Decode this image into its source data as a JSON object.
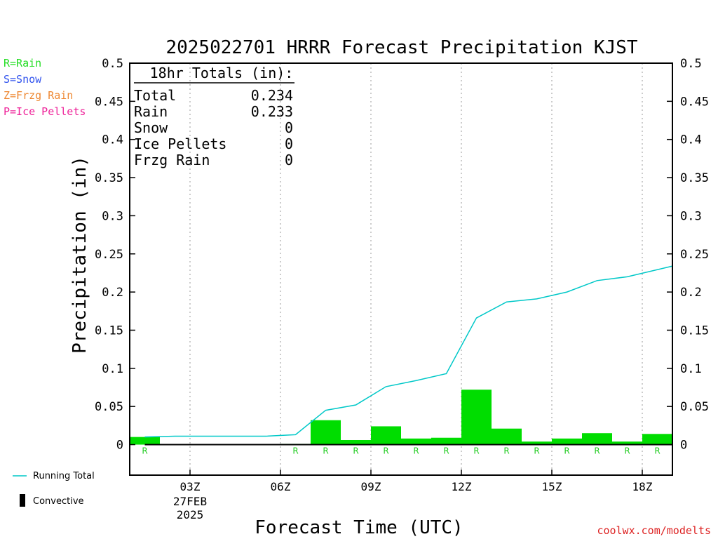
{
  "chart_data": {
    "type": "bar",
    "title": "2025022701 HRRR Forecast Precipitation KJST",
    "xlabel": "Forecast Time (UTC)",
    "ylabel": "Precipitation (in)",
    "ylim": [
      -0.04,
      0.5
    ],
    "xlim": [
      0,
      18
    ],
    "y_ticks": [
      0,
      0.05,
      0.1,
      0.15,
      0.2,
      0.25,
      0.3,
      0.35,
      0.4,
      0.45,
      0.5
    ],
    "y_tick_labels": [
      "0",
      "0.05",
      "0.1",
      "0.15",
      "0.2",
      "0.25",
      "0.3",
      "0.35",
      "0.4",
      "0.45",
      "0.5"
    ],
    "x_ticks": [
      {
        "x": 2,
        "label": "03Z",
        "sub": [
          "27FEB",
          "2025"
        ]
      },
      {
        "x": 5,
        "label": "06Z",
        "sub": []
      },
      {
        "x": 8,
        "label": "09Z",
        "sub": []
      },
      {
        "x": 11,
        "label": "12Z",
        "sub": []
      },
      {
        "x": 14,
        "label": "15Z",
        "sub": []
      },
      {
        "x": 17,
        "label": "18Z",
        "sub": []
      }
    ],
    "grid": "vertical dotted",
    "series": [
      {
        "name": "Rain",
        "color": "#00dd00",
        "x": [
          1,
          2,
          3,
          4,
          5,
          6,
          7,
          8,
          9,
          10,
          11,
          12,
          13,
          14,
          15,
          16,
          17,
          18
        ],
        "values": [
          0.01,
          0.0,
          0.0,
          0.0,
          0.0,
          0.001,
          0.032,
          0.006,
          0.024,
          0.008,
          0.009,
          0.072,
          0.021,
          0.004,
          0.008,
          0.015,
          0.004,
          0.014
        ]
      },
      {
        "name": "Running Total",
        "color": "#00c8c8",
        "type": "line",
        "x": [
          1,
          2,
          3,
          4,
          5,
          6,
          7,
          8,
          9,
          10,
          11,
          12,
          13,
          14,
          15,
          16,
          17,
          18
        ],
        "values": [
          0.01,
          0.011,
          0.011,
          0.011,
          0.011,
          0.013,
          0.045,
          0.052,
          0.076,
          0.084,
          0.093,
          0.166,
          0.187,
          0.191,
          0.2,
          0.215,
          0.22,
          0.234
        ]
      }
    ],
    "precip_type_markers": [
      {
        "x": 1,
        "label": "R"
      },
      {
        "x": 6,
        "label": "R"
      },
      {
        "x": 7,
        "label": "R"
      },
      {
        "x": 8,
        "label": "R"
      },
      {
        "x": 9,
        "label": "R"
      },
      {
        "x": 10,
        "label": "R"
      },
      {
        "x": 11,
        "label": "R"
      },
      {
        "x": 12,
        "label": "R"
      },
      {
        "x": 13,
        "label": "R"
      },
      {
        "x": 14,
        "label": "R"
      },
      {
        "x": 15,
        "label": "R"
      },
      {
        "x": 16,
        "label": "R"
      },
      {
        "x": 17,
        "label": "R"
      },
      {
        "x": 18,
        "label": "R"
      }
    ],
    "totals_box": {
      "heading": "18hr Totals (in):",
      "rows": [
        {
          "label": "Total",
          "value": "0.234"
        },
        {
          "label": "Rain",
          "value": "0.233"
        },
        {
          "label": "Snow",
          "value": "0"
        },
        {
          "label": "Ice Pellets",
          "value": "0"
        },
        {
          "label": "Frzg Rain",
          "value": "0"
        }
      ]
    },
    "type_legend": [
      {
        "text": "R=Rain",
        "color": "#22dd22"
      },
      {
        "text": "S=Snow",
        "color": "#3355ee"
      },
      {
        "text": "Z=Frzg Rain",
        "color": "#ee8833"
      },
      {
        "text": "P=Ice Pellets",
        "color": "#ee2299"
      }
    ],
    "bottom_legend": {
      "line_label": "Running Total",
      "line_color": "#00c8c8",
      "bar_label": "Convective",
      "bar_color": "#000000"
    },
    "credit": "coolwx.com/modelts",
    "credit_color": "#dd2222"
  }
}
